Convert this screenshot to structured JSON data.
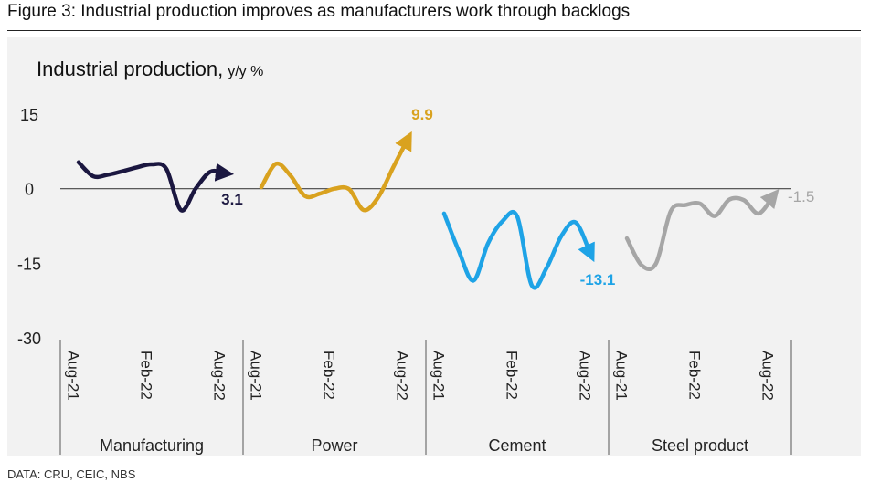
{
  "figure_title": "Figure 3: Industrial production improves as manufacturers work through backlogs",
  "source": "DATA: CRU, CEIC, NBS",
  "chart_data": {
    "type": "line",
    "title": "Industrial production,",
    "title_unit": "y/y %",
    "ylim": [
      -30,
      15
    ],
    "yticks": [
      15,
      0,
      -15,
      -30
    ],
    "x_tick_labels": [
      "Aug-21",
      "Feb-22",
      "Aug-22"
    ],
    "grid": false,
    "series": [
      {
        "name": "Manufacturing",
        "color": "#1b1740",
        "end_label": "3.1",
        "values": [
          5.3,
          2.5,
          2.8,
          3.5,
          4.3,
          4.9,
          4.0,
          -4.3,
          0.0,
          3.4,
          3.1
        ]
      },
      {
        "name": "Power",
        "color": "#d9a21f",
        "end_label": "9.9",
        "values": [
          0.3,
          5.0,
          2.6,
          -1.5,
          -1.0,
          0.0,
          -0.1,
          -4.3,
          -1.7,
          4.2,
          9.9
        ]
      },
      {
        "name": "Cement",
        "color": "#1ea3e6",
        "end_label": "-13.1",
        "values": [
          -5.0,
          -12.5,
          -18.5,
          -11.0,
          -6.5,
          -5.6,
          -19.5,
          -16.0,
          -9.6,
          -6.8,
          -13.1
        ]
      },
      {
        "name": "Steel product",
        "color": "#a6a6a6",
        "end_label": "-1.5",
        "values": [
          -10.0,
          -15.4,
          -15.0,
          -4.5,
          -3.3,
          -3.0,
          -5.5,
          -2.2,
          -2.3,
          -5.0,
          -1.5
        ]
      }
    ]
  }
}
